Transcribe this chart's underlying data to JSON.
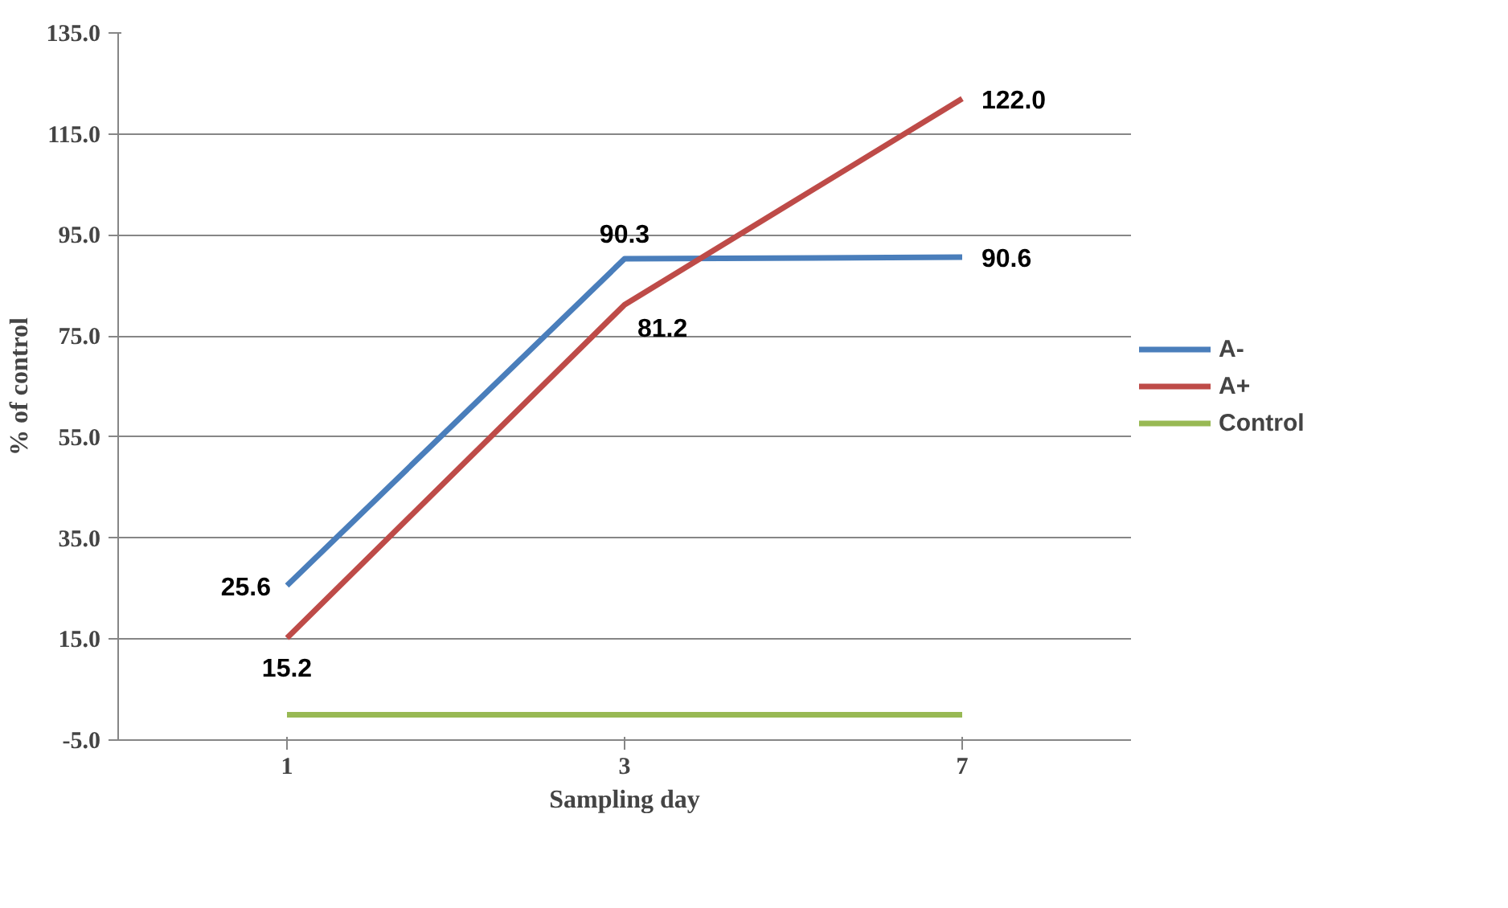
{
  "chart_data": {
    "type": "line",
    "xlabel": "Sampling day",
    "ylabel": "% of control",
    "categories": [
      "1",
      "3",
      "7"
    ],
    "series": [
      {
        "name": "A-",
        "color": "#4a7ebb",
        "values": [
          25.6,
          90.3,
          90.6
        ],
        "value_labels": [
          "25.6",
          "90.3",
          "90.6"
        ]
      },
      {
        "name": "A+",
        "color": "#be4b48",
        "values": [
          15.2,
          81.2,
          122.0
        ],
        "value_labels": [
          "15.2",
          "81.2",
          "122.0"
        ]
      },
      {
        "name": "Control",
        "color": "#98b954",
        "values": [
          0,
          0,
          0
        ]
      }
    ],
    "ylim": [
      -5,
      135
    ],
    "yticks": [
      {
        "value": -5,
        "label": "-5.0"
      },
      {
        "value": 15,
        "label": "15.0"
      },
      {
        "value": 35,
        "label": "35.0"
      },
      {
        "value": 55,
        "label": "55.0"
      },
      {
        "value": 75,
        "label": "75.0"
      },
      {
        "value": 95,
        "label": "95.0"
      },
      {
        "value": 115,
        "label": "115.0"
      },
      {
        "value": 135,
        "label": "135.0"
      }
    ],
    "grid": "y",
    "legend": "right",
    "marker": "none",
    "line_style": "solid"
  }
}
